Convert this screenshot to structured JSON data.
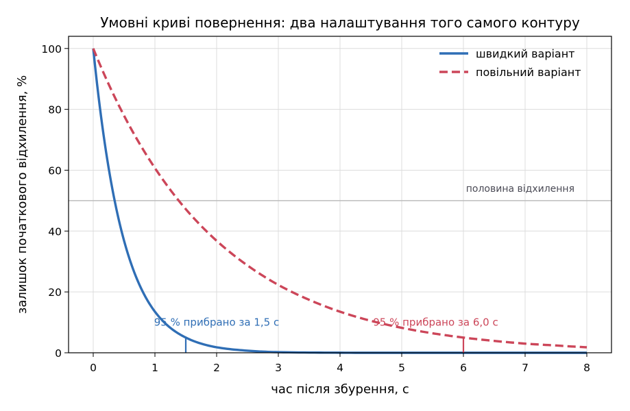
{
  "chart_data": {
    "type": "line",
    "title": "Умовні криві повернення: два налаштування того самого контуру",
    "xlabel": "час після збурення, с",
    "ylabel": "залишок початкового відхилення, %",
    "xlim": [
      -0.4,
      8.4
    ],
    "ylim": [
      0,
      104
    ],
    "xticks": [
      0,
      1,
      2,
      3,
      4,
      5,
      6,
      7,
      8
    ],
    "yticks": [
      0,
      20,
      40,
      60,
      80,
      100
    ],
    "grid": true,
    "legend_position": "top-right",
    "series": [
      {
        "name": "швидкий варіант",
        "color": "#2f6eb5",
        "style": "solid",
        "x": [
          0,
          0.25,
          0.5,
          0.75,
          1,
          1.25,
          1.5,
          2,
          2.5,
          3,
          4,
          5,
          6,
          7,
          8
        ],
        "y": [
          100,
          60.7,
          36.8,
          22.3,
          13.5,
          8.2,
          5.0,
          1.8,
          0.7,
          0.2,
          0.03,
          0,
          0,
          0,
          0
        ]
      },
      {
        "name": "повільний варіант",
        "color": "#cc4659",
        "style": "dashed",
        "x": [
          0,
          0.5,
          1,
          1.5,
          2,
          2.5,
          3,
          3.5,
          4,
          4.5,
          5,
          5.5,
          6,
          6.5,
          7,
          7.5,
          8
        ],
        "y": [
          100,
          77.9,
          60.7,
          47.2,
          36.8,
          28.7,
          22.3,
          17.4,
          13.5,
          10.5,
          8.2,
          6.4,
          5.0,
          3.9,
          3.0,
          2.4,
          1.8
        ]
      }
    ],
    "reference_line": {
      "y": 50,
      "label": "половина відхилення",
      "color": "#bdbdbd"
    },
    "markers": [
      {
        "x": 1.5,
        "y": 5,
        "label": "95 % прибрано за 1,5 с",
        "color": "#2f6eb5",
        "label_at": [
          2.0,
          10
        ]
      },
      {
        "x": 6,
        "y": 5,
        "label": "95 % прибрано за 6,0 с",
        "color": "#cc4659",
        "label_at": [
          5.55,
          10
        ]
      }
    ]
  }
}
